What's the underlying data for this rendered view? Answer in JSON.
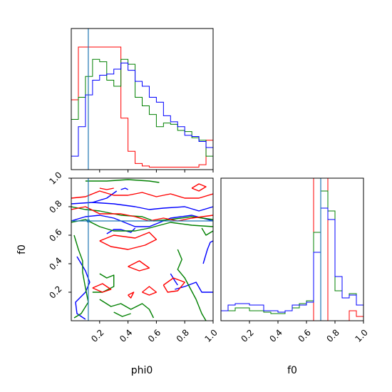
{
  "chart_data": {
    "type": "corner",
    "parameters": [
      "phi0",
      "f0"
    ],
    "xlabel_phi0": "phi0",
    "xlabel_f0": "f0",
    "ylabel_f0": "f0",
    "colors": {
      "red": "#ff0000",
      "green": "#008000",
      "blue": "#0000ff",
      "truth": "#1f77b4"
    },
    "truth": {
      "phi0": 0.12,
      "f0": 0.7
    },
    "ticks": {
      "x": [
        "0.2",
        "0.4",
        "0.6",
        "0.8",
        "1.0"
      ],
      "y": [
        "0.2",
        "0.4",
        "0.6",
        "0.8",
        "1.0"
      ]
    },
    "ranges": {
      "phi0": [
        0.0,
        1.0
      ],
      "f0": [
        0.0,
        1.0
      ]
    },
    "hist_phi0": {
      "bins": [
        0.0,
        0.05,
        0.1,
        0.15,
        0.2,
        0.25,
        0.3,
        0.35,
        0.4,
        0.45,
        0.5,
        0.55,
        0.6,
        0.65,
        0.7,
        0.75,
        0.8,
        0.85,
        0.9,
        0.95,
        1.0
      ],
      "series": [
        {
          "color": "red",
          "values": [
            0.57,
            1.0,
            1.0,
            1.0,
            1.0,
            1.0,
            1.0,
            0.42,
            0.15,
            0.05,
            0.03,
            0.02,
            0.02,
            0.02,
            0.02,
            0.02,
            0.02,
            0.02,
            0.04,
            0.24
          ]
        },
        {
          "color": "green",
          "values": [
            0.41,
            0.59,
            0.76,
            0.9,
            0.88,
            0.73,
            0.68,
            0.9,
            0.86,
            0.59,
            0.52,
            0.45,
            0.35,
            0.38,
            0.37,
            0.32,
            0.31,
            0.26,
            0.24,
            0.11
          ]
        },
        {
          "color": "blue",
          "values": [
            0.11,
            0.35,
            0.61,
            0.73,
            0.77,
            0.78,
            0.82,
            0.87,
            0.81,
            0.72,
            0.68,
            0.59,
            0.55,
            0.44,
            0.39,
            0.35,
            0.28,
            0.27,
            0.23,
            0.18
          ]
        }
      ]
    },
    "hist_f0": {
      "bins": [
        0.0,
        0.05,
        0.1,
        0.15,
        0.2,
        0.25,
        0.3,
        0.35,
        0.4,
        0.45,
        0.5,
        0.55,
        0.6,
        0.65,
        0.7,
        0.75,
        0.8,
        0.85,
        0.9,
        0.95,
        1.0
      ],
      "series": [
        {
          "color": "red",
          "values": [
            0.0,
            0.0,
            0.0,
            0.0,
            0.0,
            0.0,
            0.0,
            0.0,
            0.0,
            0.0,
            0.0,
            0.0,
            0.0,
            1.0,
            1.0,
            0.0,
            0.0,
            0.0,
            0.07,
            0.03
          ]
        },
        {
          "color": "green",
          "values": [
            0.07,
            0.07,
            0.09,
            0.09,
            0.07,
            0.07,
            0.06,
            0.05,
            0.05,
            0.07,
            0.09,
            0.12,
            0.14,
            0.62,
            0.91,
            0.77,
            0.21,
            0.16,
            0.19,
            0.11
          ]
        },
        {
          "color": "blue",
          "values": [
            0.07,
            0.11,
            0.12,
            0.12,
            0.11,
            0.11,
            0.07,
            0.07,
            0.06,
            0.07,
            0.11,
            0.11,
            0.13,
            0.48,
            0.79,
            0.71,
            0.31,
            0.16,
            0.18,
            0.11
          ]
        }
      ]
    },
    "contours": [
      {
        "color": "blue",
        "paths": [
          [
            [
              0.0,
              0.82
            ],
            [
              0.15,
              0.83
            ],
            [
              0.3,
              0.82
            ],
            [
              0.45,
              0.8
            ],
            [
              0.55,
              0.78
            ],
            [
              0.65,
              0.79
            ],
            [
              0.8,
              0.8
            ],
            [
              0.9,
              0.77
            ],
            [
              1.0,
              0.8
            ]
          ],
          [
            [
              0.0,
              0.7
            ],
            [
              0.1,
              0.73
            ],
            [
              0.2,
              0.74
            ],
            [
              0.3,
              0.72
            ],
            [
              0.45,
              0.66
            ],
            [
              0.55,
              0.66
            ],
            [
              0.7,
              0.72
            ],
            [
              0.85,
              0.74
            ],
            [
              1.0,
              0.7
            ]
          ],
          [
            [
              0.04,
              0.45
            ],
            [
              0.1,
              0.35
            ],
            [
              0.13,
              0.27
            ],
            [
              0.1,
              0.2
            ],
            [
              0.03,
              0.13
            ],
            [
              0.04,
              0.05
            ],
            [
              0.1,
              0.01
            ]
          ],
          [
            [
              0.25,
              0.61
            ],
            [
              0.3,
              0.64
            ],
            [
              0.35,
              0.64
            ],
            [
              0.42,
              0.62
            ],
            [
              0.45,
              0.65
            ]
          ],
          [
            [
              0.73,
              0.22
            ],
            [
              0.8,
              0.24
            ],
            [
              0.88,
              0.27
            ],
            [
              0.92,
              0.2
            ],
            [
              1.0,
              0.2
            ]
          ],
          [
            [
              0.15,
              0.83
            ],
            [
              0.25,
              0.86
            ],
            [
              0.32,
              0.91
            ]
          ],
          [
            [
              0.35,
              0.92
            ],
            [
              0.38,
              0.93
            ],
            [
              0.4,
              0.92
            ]
          ],
          [
            [
              0.93,
              0.4
            ],
            [
              0.96,
              0.5
            ],
            [
              0.98,
              0.55
            ],
            [
              1.0,
              0.56
            ]
          ],
          [
            [
              0.7,
              0.33
            ],
            [
              0.73,
              0.28
            ],
            [
              0.75,
              0.25
            ]
          ]
        ]
      },
      {
        "color": "green",
        "paths": [
          [
            [
              0.0,
              0.8
            ],
            [
              0.1,
              0.78
            ],
            [
              0.2,
              0.77
            ],
            [
              0.35,
              0.74
            ],
            [
              0.5,
              0.73
            ],
            [
              0.58,
              0.7
            ],
            [
              0.7,
              0.71
            ],
            [
              0.85,
              0.73
            ],
            [
              1.0,
              0.71
            ]
          ],
          [
            [
              0.0,
              0.69
            ],
            [
              0.1,
              0.71
            ],
            [
              0.2,
              0.66
            ],
            [
              0.3,
              0.63
            ],
            [
              0.45,
              0.63
            ],
            [
              0.55,
              0.65
            ],
            [
              0.7,
              0.69
            ],
            [
              0.85,
              0.67
            ],
            [
              1.0,
              0.66
            ]
          ],
          [
            [
              0.02,
              0.6
            ],
            [
              0.05,
              0.5
            ],
            [
              0.08,
              0.42
            ],
            [
              0.08,
              0.34
            ],
            [
              0.1,
              0.23
            ],
            [
              0.12,
              0.13
            ],
            [
              0.07,
              0.05
            ],
            [
              0.02,
              0.02
            ]
          ],
          [
            [
              0.2,
              0.15
            ],
            [
              0.28,
              0.1
            ],
            [
              0.35,
              0.12
            ],
            [
              0.42,
              0.08
            ],
            [
              0.5,
              0.12
            ],
            [
              0.55,
              0.08
            ],
            [
              0.58,
              0.02
            ]
          ],
          [
            [
              0.75,
              0.5
            ],
            [
              0.78,
              0.43
            ],
            [
              0.75,
              0.36
            ],
            [
              0.8,
              0.3
            ],
            [
              0.88,
              0.15
            ],
            [
              0.92,
              0.05
            ],
            [
              0.95,
              0.0
            ]
          ],
          [
            [
              0.2,
              0.33
            ],
            [
              0.25,
              0.3
            ],
            [
              0.3,
              0.32
            ],
            [
              0.3,
              0.24
            ],
            [
              0.22,
              0.2
            ],
            [
              0.15,
              0.2
            ]
          ],
          [
            [
              0.92,
              0.65
            ],
            [
              0.95,
              0.6
            ],
            [
              1.0,
              0.63
            ]
          ],
          [
            [
              0.1,
              0.98
            ],
            [
              0.25,
              0.98
            ],
            [
              0.4,
              0.99
            ],
            [
              0.55,
              0.98
            ],
            [
              0.62,
              0.97
            ]
          ],
          [
            [
              0.3,
              0.06
            ],
            [
              0.36,
              0.03
            ],
            [
              0.42,
              0.05
            ]
          ]
        ]
      },
      {
        "color": "red",
        "paths": [
          [
            [
              0.0,
              0.86
            ],
            [
              0.1,
              0.87
            ],
            [
              0.2,
              0.91
            ],
            [
              0.3,
              0.88
            ],
            [
              0.4,
              0.88
            ],
            [
              0.5,
              0.9
            ],
            [
              0.6,
              0.87
            ],
            [
              0.7,
              0.89
            ],
            [
              0.8,
              0.86
            ],
            [
              0.9,
              0.86
            ],
            [
              1.0,
              0.89
            ]
          ],
          [
            [
              0.0,
              0.78
            ],
            [
              0.1,
              0.8
            ],
            [
              0.2,
              0.75
            ],
            [
              0.35,
              0.75
            ],
            [
              0.45,
              0.73
            ],
            [
              0.55,
              0.7
            ],
            [
              0.65,
              0.72
            ],
            [
              0.75,
              0.7
            ],
            [
              0.85,
              0.72
            ],
            [
              1.0,
              0.74
            ]
          ],
          [
            [
              0.2,
              0.56
            ],
            [
              0.3,
              0.6
            ],
            [
              0.45,
              0.58
            ],
            [
              0.55,
              0.62
            ],
            [
              0.6,
              0.57
            ],
            [
              0.52,
              0.53
            ],
            [
              0.4,
              0.5
            ],
            [
              0.28,
              0.52
            ],
            [
              0.2,
              0.56
            ]
          ],
          [
            [
              0.4,
              0.38
            ],
            [
              0.48,
              0.42
            ],
            [
              0.55,
              0.37
            ],
            [
              0.48,
              0.35
            ],
            [
              0.4,
              0.38
            ]
          ],
          [
            [
              0.15,
              0.23
            ],
            [
              0.22,
              0.26
            ],
            [
              0.28,
              0.22
            ],
            [
              0.22,
              0.2
            ],
            [
              0.15,
              0.23
            ]
          ],
          [
            [
              0.5,
              0.2
            ],
            [
              0.55,
              0.18
            ],
            [
              0.6,
              0.2
            ],
            [
              0.55,
              0.24
            ],
            [
              0.5,
              0.2
            ]
          ],
          [
            [
              0.65,
              0.25
            ],
            [
              0.72,
              0.3
            ],
            [
              0.8,
              0.27
            ],
            [
              0.75,
              0.21
            ],
            [
              0.68,
              0.2
            ],
            [
              0.65,
              0.25
            ]
          ],
          [
            [
              0.85,
              0.93
            ],
            [
              0.9,
              0.96
            ],
            [
              0.95,
              0.94
            ],
            [
              0.9,
              0.91
            ],
            [
              0.85,
              0.93
            ]
          ],
          [
            [
              0.2,
              0.93
            ],
            [
              0.25,
              0.92
            ],
            [
              0.3,
              0.93
            ]
          ],
          [
            [
              0.4,
              0.18
            ],
            [
              0.44,
              0.2
            ],
            [
              0.42,
              0.16
            ],
            [
              0.4,
              0.18
            ]
          ]
        ]
      }
    ]
  }
}
